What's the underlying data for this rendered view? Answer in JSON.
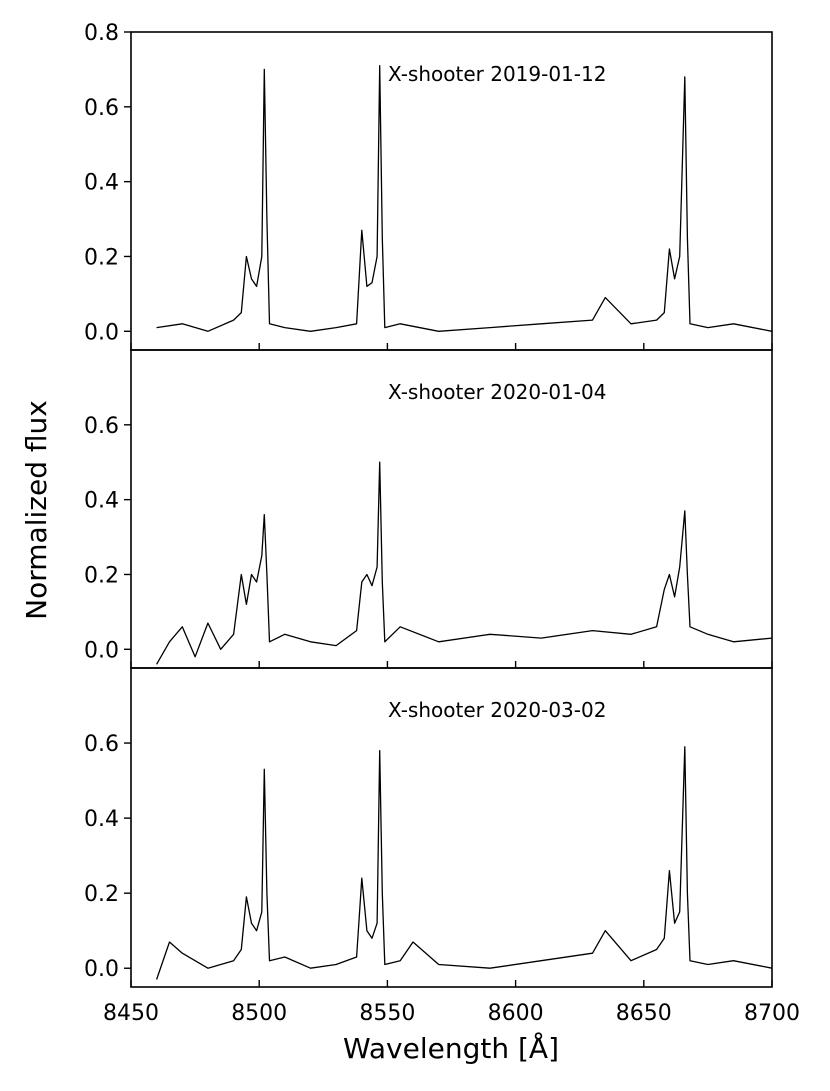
{
  "chart_data": {
    "type": "line",
    "xlabel": "Wavelength [Å]",
    "ylabel": "Normalized flux",
    "xlim": [
      8450,
      8700
    ],
    "x_ticks": [
      8450,
      8500,
      8550,
      8600,
      8650,
      8700
    ],
    "grid": false,
    "legend": "none",
    "line_color": "#000000",
    "panels": [
      {
        "label": "X-shooter 2019-01-12",
        "ylim": [
          -0.05,
          0.8
        ],
        "y_ticks": [
          0.0,
          0.2,
          0.4,
          0.6,
          0.8
        ],
        "y_tick_labels": [
          "0.0",
          "0.2",
          "0.4",
          "0.6",
          "0.8"
        ],
        "x": [
          8460,
          8470,
          8480,
          8490,
          8493,
          8495,
          8497,
          8499,
          8501,
          8502,
          8503,
          8504,
          8510,
          8520,
          8530,
          8538,
          8540,
          8542,
          8544,
          8546,
          8547,
          8548,
          8549,
          8555,
          8570,
          8590,
          8610,
          8630,
          8635,
          8645,
          8655,
          8658,
          8660,
          8662,
          8664,
          8666,
          8667,
          8668,
          8675,
          8685,
          8700
        ],
        "y": [
          0.01,
          0.02,
          0.0,
          0.03,
          0.05,
          0.2,
          0.14,
          0.12,
          0.2,
          0.7,
          0.3,
          0.02,
          0.01,
          0.0,
          0.01,
          0.02,
          0.27,
          0.12,
          0.13,
          0.2,
          0.71,
          0.25,
          0.01,
          0.02,
          0.0,
          0.01,
          0.02,
          0.03,
          0.09,
          0.02,
          0.03,
          0.05,
          0.22,
          0.14,
          0.2,
          0.68,
          0.25,
          0.02,
          0.01,
          0.02,
          0.0
        ]
      },
      {
        "label": "X-shooter 2020-01-04",
        "ylim": [
          -0.05,
          0.8
        ],
        "y_ticks": [
          0.0,
          0.2,
          0.4,
          0.6
        ],
        "y_tick_labels": [
          "0.0",
          "0.2",
          "0.4",
          "0.6"
        ],
        "x": [
          8460,
          8465,
          8470,
          8475,
          8480,
          8485,
          8490,
          8493,
          8495,
          8497,
          8499,
          8501,
          8502,
          8503,
          8504,
          8510,
          8520,
          8530,
          8538,
          8540,
          8542,
          8544,
          8546,
          8547,
          8548,
          8549,
          8555,
          8570,
          8590,
          8610,
          8630,
          8645,
          8655,
          8658,
          8660,
          8662,
          8664,
          8666,
          8667,
          8668,
          8675,
          8685,
          8700
        ],
        "y": [
          -0.04,
          0.02,
          0.06,
          -0.02,
          0.07,
          0.0,
          0.04,
          0.2,
          0.12,
          0.2,
          0.18,
          0.25,
          0.36,
          0.2,
          0.02,
          0.04,
          0.02,
          0.01,
          0.05,
          0.18,
          0.2,
          0.17,
          0.22,
          0.5,
          0.18,
          0.02,
          0.06,
          0.02,
          0.04,
          0.03,
          0.05,
          0.04,
          0.06,
          0.16,
          0.2,
          0.14,
          0.22,
          0.37,
          0.2,
          0.06,
          0.04,
          0.02,
          0.03
        ]
      },
      {
        "label": "X-shooter 2020-03-02",
        "ylim": [
          -0.05,
          0.8
        ],
        "y_ticks": [
          0.0,
          0.2,
          0.4,
          0.6
        ],
        "y_tick_labels": [
          "0.0",
          "0.2",
          "0.4",
          "0.6"
        ],
        "x": [
          8460,
          8465,
          8470,
          8480,
          8490,
          8493,
          8495,
          8497,
          8499,
          8501,
          8502,
          8503,
          8504,
          8510,
          8520,
          8530,
          8538,
          8540,
          8542,
          8544,
          8546,
          8547,
          8548,
          8549,
          8555,
          8560,
          8570,
          8590,
          8610,
          8630,
          8635,
          8645,
          8655,
          8658,
          8660,
          8662,
          8664,
          8666,
          8667,
          8668,
          8675,
          8685,
          8700
        ],
        "y": [
          -0.03,
          0.07,
          0.04,
          0.0,
          0.02,
          0.05,
          0.19,
          0.12,
          0.1,
          0.15,
          0.53,
          0.2,
          0.02,
          0.03,
          0.0,
          0.01,
          0.03,
          0.24,
          0.1,
          0.08,
          0.12,
          0.58,
          0.2,
          0.01,
          0.02,
          0.07,
          0.01,
          0.0,
          0.02,
          0.04,
          0.1,
          0.02,
          0.05,
          0.08,
          0.26,
          0.12,
          0.15,
          0.59,
          0.2,
          0.02,
          0.01,
          0.02,
          0.0
        ]
      }
    ]
  }
}
